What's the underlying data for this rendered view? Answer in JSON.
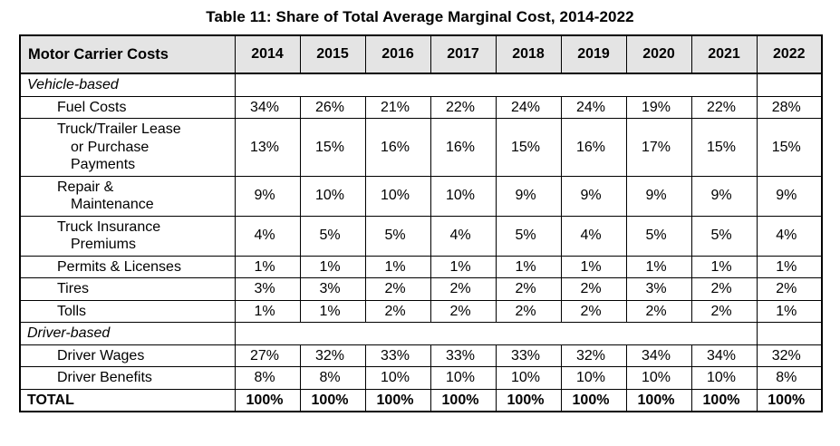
{
  "title": "Table 11: Share of Total Average Marginal Cost, 2014-2022",
  "colors": {
    "header_bg": "#e4e4e4",
    "border": "#000000",
    "text": "#000000"
  },
  "chart_data": {
    "type": "table",
    "title": "Table 11: Share of Total Average Marginal Cost, 2014-2022",
    "unit": "%",
    "columns": [
      "Motor Carrier Costs",
      "2014",
      "2015",
      "2016",
      "2017",
      "2018",
      "2019",
      "2020",
      "2021",
      "2022"
    ],
    "rows": [
      {
        "kind": "section",
        "label": "Vehicle-based",
        "values": []
      },
      {
        "kind": "item",
        "label": "Fuel Costs",
        "values": [
          34,
          26,
          21,
          22,
          24,
          24,
          19,
          22,
          28
        ]
      },
      {
        "kind": "item",
        "label": "Truck/Trailer Lease\nor Purchase\nPayments",
        "values": [
          13,
          15,
          16,
          16,
          15,
          16,
          17,
          15,
          15
        ]
      },
      {
        "kind": "item",
        "label": "Repair &\nMaintenance",
        "values": [
          9,
          10,
          10,
          10,
          9,
          9,
          9,
          9,
          9
        ]
      },
      {
        "kind": "item",
        "label": "Truck Insurance\nPremiums",
        "values": [
          4,
          5,
          5,
          4,
          5,
          4,
          5,
          5,
          4
        ]
      },
      {
        "kind": "item",
        "label": "Permits & Licenses",
        "values": [
          1,
          1,
          1,
          1,
          1,
          1,
          1,
          1,
          1
        ]
      },
      {
        "kind": "item",
        "label": "Tires",
        "values": [
          3,
          3,
          2,
          2,
          2,
          2,
          3,
          2,
          2
        ]
      },
      {
        "kind": "item",
        "label": "Tolls",
        "values": [
          1,
          1,
          2,
          2,
          2,
          2,
          2,
          2,
          1
        ]
      },
      {
        "kind": "section",
        "label": "Driver-based",
        "values": []
      },
      {
        "kind": "item",
        "label": "Driver Wages",
        "values": [
          27,
          32,
          33,
          33,
          33,
          32,
          34,
          34,
          32
        ]
      },
      {
        "kind": "item",
        "label": "Driver Benefits",
        "values": [
          8,
          8,
          10,
          10,
          10,
          10,
          10,
          10,
          8
        ]
      },
      {
        "kind": "total",
        "label": "TOTAL",
        "values": [
          100,
          100,
          100,
          100,
          100,
          100,
          100,
          100,
          100
        ]
      }
    ]
  }
}
